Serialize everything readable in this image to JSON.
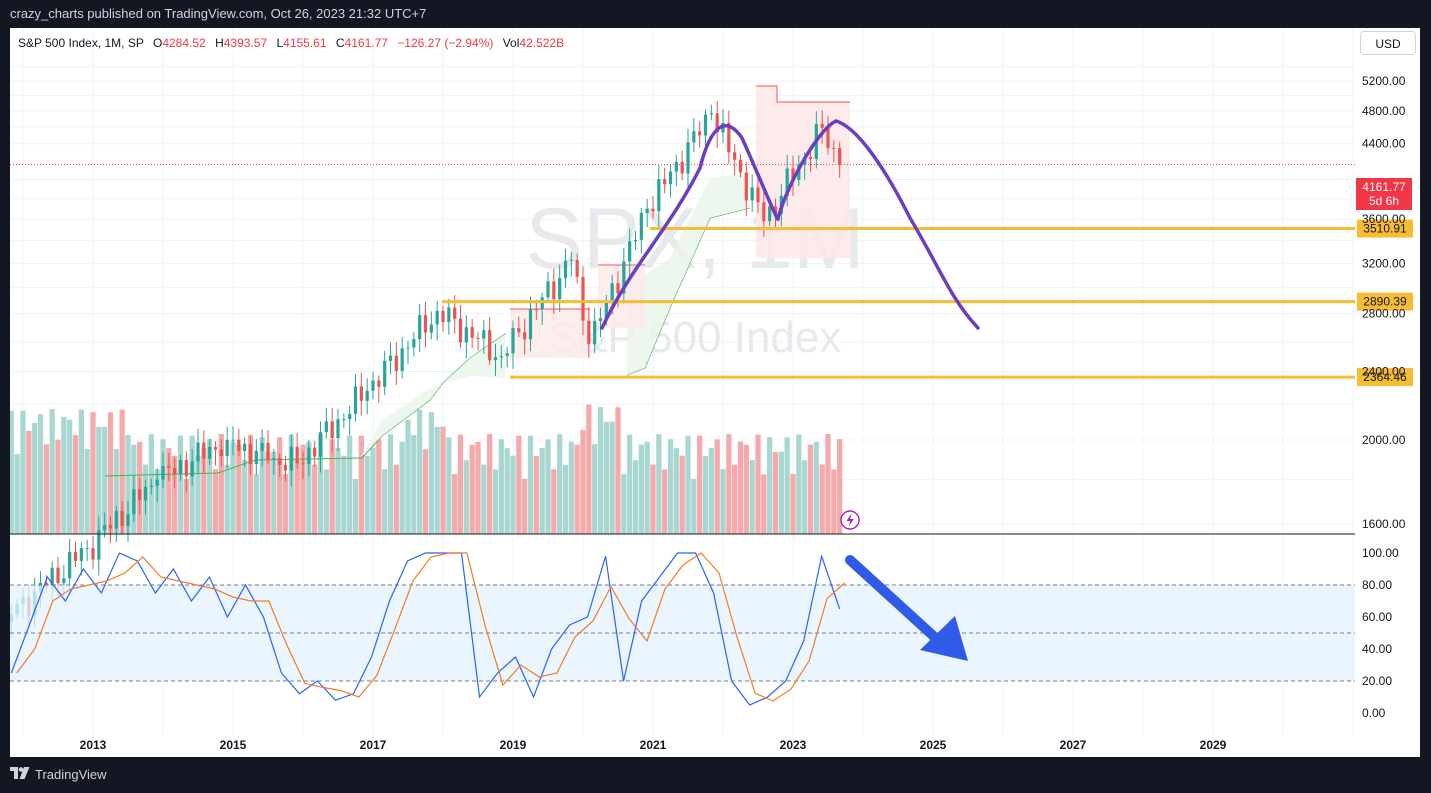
{
  "header": {
    "text": "crazy_charts published on TradingView.com, Oct 26, 2023 21:32 UTC+7"
  },
  "legend": {
    "symbol": "S&P 500 Index, 1M, SP",
    "o_label": "O",
    "o": "4284.52",
    "h_label": "H",
    "h": "4393.57",
    "l_label": "L",
    "l": "4155.61",
    "c_label": "C",
    "c": "4161.77",
    "change": "−126.27 (−2.94%)",
    "vol_label": "Vol",
    "vol": "42.522B"
  },
  "currency_button": "USD",
  "watermark": {
    "ticker": "SPX, 1M",
    "name": "S&P 500 Index"
  },
  "price_badge": {
    "value": "4161.77",
    "countdown": "5d 6h"
  },
  "level_labels": [
    "3510.91",
    "2890.39",
    "2364.46"
  ],
  "price_axis_labels": [
    "5200.00",
    "4800.00",
    "4400.00",
    "3600.00",
    "3200.00",
    "2800.00",
    "2400.00",
    "2000.00",
    "1600.00"
  ],
  "oscillator_axis_labels": [
    "100.00",
    "80.00",
    "60.00",
    "40.00",
    "20.00",
    "0.00"
  ],
  "time_axis_labels": [
    "2013",
    "2015",
    "2017",
    "2019",
    "2021",
    "2023",
    "2025",
    "2027",
    "2029"
  ],
  "footer": {
    "brand": "TradingView"
  },
  "colors": {
    "up": "#26a69a",
    "down": "#ef5350",
    "level": "#f7bd32",
    "drawing": "#6a3ec1",
    "arrow": "#2f5be8",
    "osc_k": "#2962ff",
    "osc_d": "#f57c22"
  },
  "chart_data": [
    {
      "type": "candlestick",
      "title": "S&P 500 Index, 1M, SP",
      "y_scale": "log",
      "ylim": [
        1200,
        5400
      ],
      "x_range": [
        "2011-10",
        "2030-12"
      ],
      "last_close": 4161.77,
      "anchor_points": [
        {
          "date": "2011-12",
          "close": 1258
        },
        {
          "date": "2013-01",
          "close": 1500
        },
        {
          "date": "2014-01",
          "close": 1800
        },
        {
          "date": "2015-01",
          "close": 2000
        },
        {
          "date": "2015-08",
          "close": 1900
        },
        {
          "date": "2016-01",
          "close": 1880
        },
        {
          "date": "2017-01",
          "close": 2280
        },
        {
          "date": "2018-01",
          "close": 2820
        },
        {
          "date": "2018-12",
          "close": 2500
        },
        {
          "date": "2019-12",
          "close": 3230
        },
        {
          "date": "2020-03",
          "close": 2580
        },
        {
          "date": "2021-01",
          "close": 3700
        },
        {
          "date": "2021-12",
          "close": 4770
        },
        {
          "date": "2022-09",
          "close": 3580
        },
        {
          "date": "2023-07",
          "close": 4590
        },
        {
          "date": "2023-10",
          "close": 4161.77
        }
      ],
      "horizontal_levels": [
        3510.91,
        2890.39,
        2364.46
      ],
      "drawings": [
        "projected head-and-shoulders path (purple)",
        "stop-and-reverse trail (green/red)"
      ]
    },
    {
      "type": "line",
      "ylim": [
        -10,
        105
      ],
      "bands": [
        20,
        50,
        80
      ],
      "series": [
        {
          "values": [
            25,
            55,
            85,
            70,
            90,
            75,
            100,
            95,
            75,
            90,
            70,
            85,
            60,
            80,
            60,
            25,
            12,
            20,
            8,
            12,
            35,
            70,
            95,
            100,
            100,
            100,
            10,
            25,
            35,
            10,
            40,
            55,
            60,
            98,
            20,
            70,
            85,
            100,
            100,
            75,
            20,
            5,
            10,
            20,
            45,
            98,
            65
          ]
        }
      ]
    }
  ]
}
